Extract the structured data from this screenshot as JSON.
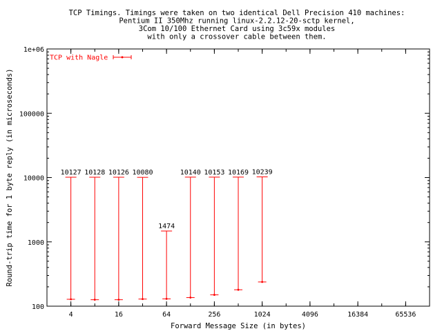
{
  "chart_data": {
    "type": "scatter",
    "title_lines": [
      "TCP Timings.  Timings were taken on two identical Dell Precision 410 machines:",
      "Pentium II 350Mhz running linux-2.2.12-20-sctp kernel,",
      "3Com 10/100 Ethernet Card using 3c59x modules",
      "with only a crossover cable between them."
    ],
    "xlabel": "Forward Message Size (in bytes)",
    "ylabel": "Round-trip time for 1 byte reply (in microseconds)",
    "x_scale": "log2",
    "y_scale": "log10",
    "xlim": [
      2,
      131072
    ],
    "ylim": [
      100,
      1000000
    ],
    "x_ticks": [
      4,
      16,
      64,
      256,
      1024,
      4096,
      16384,
      65536
    ],
    "x_tick_labels": [
      "4",
      "16",
      "64",
      "256",
      "1024",
      "4096",
      "16384",
      "65536"
    ],
    "y_ticks": [
      100,
      1000,
      10000,
      100000,
      1000000
    ],
    "y_tick_labels": [
      "100",
      "1000",
      "10000",
      "100000",
      "1e+06"
    ],
    "grid": false,
    "legend_position": "top-left",
    "series": [
      {
        "name": "TCP with Nagle",
        "color": "#ff0000",
        "points": [
          {
            "x": 4,
            "y_min": 128,
            "y_max": 10127,
            "label": "10127"
          },
          {
            "x": 8,
            "y_min": 126,
            "y_max": 10128,
            "label": "10128"
          },
          {
            "x": 16,
            "y_min": 126,
            "y_max": 10126,
            "label": "10126"
          },
          {
            "x": 32,
            "y_min": 129,
            "y_max": 10080,
            "label": "10080"
          },
          {
            "x": 64,
            "y_min": 130,
            "y_max": 1474,
            "label": "1474"
          },
          {
            "x": 128,
            "y_min": 136,
            "y_max": 10140,
            "label": "10140"
          },
          {
            "x": 256,
            "y_min": 150,
            "y_max": 10153,
            "label": "10153"
          },
          {
            "x": 512,
            "y_min": 180,
            "y_max": 10169,
            "label": "10169"
          },
          {
            "x": 1024,
            "y_min": 238,
            "y_max": 10239,
            "label": "10239"
          }
        ]
      }
    ]
  }
}
